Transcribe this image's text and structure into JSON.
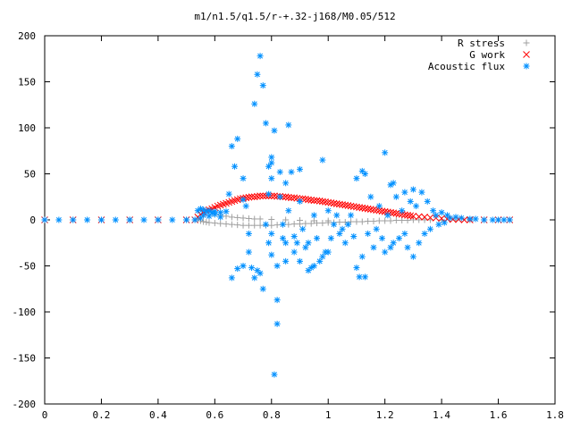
{
  "chart_data": {
    "type": "scatter",
    "title": "m1/n1.5/q1.5/r-+.32-j168/M0.05/512",
    "xlabel": "",
    "ylabel": "",
    "xlim": [
      0,
      1.8
    ],
    "ylim": [
      -200,
      200
    ],
    "x_ticks": [
      "0",
      "0.2",
      "0.4",
      "0.6",
      "0.8",
      "1",
      "1.2",
      "1.4",
      "1.6",
      "1.8"
    ],
    "y_ticks": [
      "200",
      "150",
      "100",
      "50",
      "0",
      "-50",
      "-100",
      "-150",
      "-200"
    ],
    "grid": false,
    "legend_position": "top-right",
    "series": [
      {
        "name": "R stress",
        "marker": "plus",
        "color": "#a0a0a0",
        "points": [
          [
            0.0,
            0
          ],
          [
            0.1,
            0
          ],
          [
            0.2,
            0
          ],
          [
            0.3,
            0
          ],
          [
            0.4,
            0
          ],
          [
            0.5,
            0
          ],
          [
            0.53,
            0
          ],
          [
            0.54,
            1
          ],
          [
            0.55,
            -1
          ],
          [
            0.56,
            -2
          ],
          [
            0.57,
            -2.5
          ],
          [
            0.58,
            -3
          ],
          [
            0.6,
            -3.5
          ],
          [
            0.62,
            -4
          ],
          [
            0.64,
            -4.5
          ],
          [
            0.66,
            -5
          ],
          [
            0.68,
            -5.5
          ],
          [
            0.7,
            -6
          ],
          [
            0.72,
            -6
          ],
          [
            0.74,
            -6
          ],
          [
            0.76,
            -6
          ],
          [
            0.78,
            -6
          ],
          [
            0.8,
            -6
          ],
          [
            0.82,
            -5.5
          ],
          [
            0.84,
            -5
          ],
          [
            0.86,
            -5
          ],
          [
            0.88,
            -4.5
          ],
          [
            0.9,
            -4.5
          ],
          [
            0.92,
            -4
          ],
          [
            0.94,
            -4
          ],
          [
            0.96,
            -3.5
          ],
          [
            0.98,
            -3.5
          ],
          [
            1.0,
            -3
          ],
          [
            1.02,
            -3
          ],
          [
            1.04,
            -2.5
          ],
          [
            1.06,
            -2.5
          ],
          [
            1.08,
            -2
          ],
          [
            1.1,
            -2
          ],
          [
            1.12,
            -2
          ],
          [
            1.14,
            -1.5
          ],
          [
            1.16,
            -1.5
          ],
          [
            1.18,
            -1
          ],
          [
            1.2,
            -1
          ],
          [
            1.22,
            -1
          ],
          [
            1.24,
            -0.5
          ],
          [
            1.26,
            -0.5
          ],
          [
            1.28,
            -0.5
          ],
          [
            1.3,
            0
          ],
          [
            1.32,
            0
          ],
          [
            1.34,
            0
          ],
          [
            1.36,
            0
          ],
          [
            1.4,
            0
          ],
          [
            1.45,
            0
          ],
          [
            1.5,
            0
          ],
          [
            1.55,
            0
          ],
          [
            1.6,
            0
          ],
          [
            1.64,
            0
          ],
          [
            0.6,
            6
          ],
          [
            0.62,
            5
          ],
          [
            0.64,
            4
          ],
          [
            0.66,
            3
          ],
          [
            0.68,
            2.5
          ],
          [
            0.7,
            2
          ],
          [
            0.72,
            1.5
          ],
          [
            0.74,
            1
          ],
          [
            0.76,
            1
          ],
          [
            0.8,
            0.5
          ],
          [
            0.85,
            0
          ],
          [
            0.9,
            -0.5
          ],
          [
            0.95,
            -1
          ],
          [
            1.0,
            -1
          ]
        ]
      },
      {
        "name": "G work",
        "marker": "cross",
        "color": "#ff0000",
        "points": [
          [
            0.0,
            0
          ],
          [
            0.1,
            0
          ],
          [
            0.2,
            0
          ],
          [
            0.3,
            0
          ],
          [
            0.4,
            0
          ],
          [
            0.5,
            0
          ],
          [
            0.53,
            0
          ],
          [
            0.54,
            3
          ],
          [
            0.55,
            6
          ],
          [
            0.56,
            8
          ],
          [
            0.57,
            10
          ],
          [
            0.58,
            11
          ],
          [
            0.59,
            12
          ],
          [
            0.6,
            13.5
          ],
          [
            0.61,
            15
          ],
          [
            0.62,
            16
          ],
          [
            0.63,
            17
          ],
          [
            0.64,
            18
          ],
          [
            0.65,
            19
          ],
          [
            0.66,
            20
          ],
          [
            0.67,
            21
          ],
          [
            0.68,
            22
          ],
          [
            0.69,
            23
          ],
          [
            0.7,
            23.5
          ],
          [
            0.71,
            24
          ],
          [
            0.72,
            24.5
          ],
          [
            0.73,
            25
          ],
          [
            0.74,
            25
          ],
          [
            0.75,
            25.5
          ],
          [
            0.76,
            26
          ],
          [
            0.77,
            26
          ],
          [
            0.78,
            26
          ],
          [
            0.79,
            26
          ],
          [
            0.8,
            26
          ],
          [
            0.81,
            26
          ],
          [
            0.82,
            25.5
          ],
          [
            0.83,
            25.5
          ],
          [
            0.84,
            25
          ],
          [
            0.85,
            25
          ],
          [
            0.86,
            24.5
          ],
          [
            0.87,
            24
          ],
          [
            0.88,
            24
          ],
          [
            0.89,
            23.5
          ],
          [
            0.9,
            23
          ],
          [
            0.91,
            23
          ],
          [
            0.92,
            22.5
          ],
          [
            0.93,
            22
          ],
          [
            0.94,
            21.5
          ],
          [
            0.95,
            21
          ],
          [
            0.96,
            21
          ],
          [
            0.97,
            20.5
          ],
          [
            0.98,
            20
          ],
          [
            0.99,
            19.5
          ],
          [
            1.0,
            19
          ],
          [
            1.01,
            18.5
          ],
          [
            1.02,
            18
          ],
          [
            1.03,
            17.5
          ],
          [
            1.04,
            17
          ],
          [
            1.05,
            16.5
          ],
          [
            1.06,
            16
          ],
          [
            1.07,
            15.5
          ],
          [
            1.08,
            15
          ],
          [
            1.09,
            14.5
          ],
          [
            1.1,
            14
          ],
          [
            1.11,
            13.5
          ],
          [
            1.12,
            13
          ],
          [
            1.13,
            12.5
          ],
          [
            1.14,
            12
          ],
          [
            1.15,
            11.5
          ],
          [
            1.16,
            11
          ],
          [
            1.17,
            10.5
          ],
          [
            1.18,
            10
          ],
          [
            1.19,
            9.5
          ],
          [
            1.2,
            9
          ],
          [
            1.21,
            8.5
          ],
          [
            1.22,
            8
          ],
          [
            1.23,
            7.5
          ],
          [
            1.24,
            7
          ],
          [
            1.25,
            6.5
          ],
          [
            1.26,
            6
          ],
          [
            1.27,
            5.5
          ],
          [
            1.28,
            5
          ],
          [
            1.29,
            4.5
          ],
          [
            1.3,
            4
          ],
          [
            1.32,
            3.5
          ],
          [
            1.34,
            3
          ],
          [
            1.36,
            2.5
          ],
          [
            1.38,
            2
          ],
          [
            1.4,
            1.5
          ],
          [
            1.42,
            1
          ],
          [
            1.44,
            0.5
          ],
          [
            1.46,
            0.5
          ],
          [
            1.48,
            0
          ],
          [
            1.5,
            0
          ],
          [
            1.55,
            0
          ],
          [
            1.6,
            0
          ],
          [
            1.64,
            0
          ]
        ]
      },
      {
        "name": "Acoustic flux",
        "marker": "star",
        "color": "#0090ff",
        "points": [
          [
            0.0,
            0
          ],
          [
            0.05,
            0
          ],
          [
            0.1,
            0
          ],
          [
            0.15,
            0
          ],
          [
            0.2,
            0
          ],
          [
            0.25,
            0
          ],
          [
            0.3,
            0
          ],
          [
            0.35,
            0
          ],
          [
            0.4,
            0
          ],
          [
            0.45,
            0
          ],
          [
            0.5,
            0
          ],
          [
            0.53,
            0
          ],
          [
            0.54,
            10
          ],
          [
            0.55,
            12
          ],
          [
            0.56,
            11
          ],
          [
            0.57,
            9
          ],
          [
            0.58,
            10
          ],
          [
            0.59,
            8
          ],
          [
            0.6,
            9
          ],
          [
            0.62,
            8
          ],
          [
            0.64,
            9
          ],
          [
            0.55,
            2
          ],
          [
            0.56,
            5
          ],
          [
            0.58,
            4
          ],
          [
            0.6,
            6
          ],
          [
            0.62,
            3
          ],
          [
            0.66,
            80
          ],
          [
            0.67,
            58
          ],
          [
            0.68,
            88
          ],
          [
            0.65,
            28
          ],
          [
            0.66,
            -63
          ],
          [
            0.68,
            -53
          ],
          [
            0.7,
            -50
          ],
          [
            0.7,
            45
          ],
          [
            0.7,
            22
          ],
          [
            0.71,
            15
          ],
          [
            0.72,
            -15
          ],
          [
            0.72,
            -35
          ],
          [
            0.73,
            -52
          ],
          [
            0.74,
            -63
          ],
          [
            0.74,
            126
          ],
          [
            0.75,
            158
          ],
          [
            0.75,
            -55
          ],
          [
            0.76,
            -58
          ],
          [
            0.77,
            -75
          ],
          [
            0.77,
            146
          ],
          [
            0.76,
            178
          ],
          [
            0.78,
            105
          ],
          [
            0.78,
            -5
          ],
          [
            0.79,
            28
          ],
          [
            0.79,
            58
          ],
          [
            0.79,
            -25
          ],
          [
            0.8,
            68
          ],
          [
            0.8,
            62
          ],
          [
            0.8,
            45
          ],
          [
            0.8,
            -15
          ],
          [
            0.8,
            -38
          ],
          [
            0.81,
            97
          ],
          [
            0.81,
            -168
          ],
          [
            0.82,
            -87
          ],
          [
            0.82,
            -113
          ],
          [
            0.82,
            -50
          ],
          [
            0.83,
            52
          ],
          [
            0.83,
            25
          ],
          [
            0.84,
            -5
          ],
          [
            0.84,
            -20
          ],
          [
            0.85,
            40
          ],
          [
            0.85,
            -25
          ],
          [
            0.85,
            -45
          ],
          [
            0.86,
            103
          ],
          [
            0.86,
            10
          ],
          [
            0.87,
            52
          ],
          [
            0.88,
            -18
          ],
          [
            0.88,
            -35
          ],
          [
            0.89,
            -25
          ],
          [
            0.9,
            55
          ],
          [
            0.9,
            20
          ],
          [
            0.9,
            -45
          ],
          [
            0.91,
            -10
          ],
          [
            0.92,
            -30
          ],
          [
            0.93,
            -25
          ],
          [
            0.93,
            -55
          ],
          [
            0.94,
            -52
          ],
          [
            0.95,
            -50
          ],
          [
            0.95,
            5
          ],
          [
            0.96,
            -20
          ],
          [
            0.97,
            -45
          ],
          [
            0.98,
            -40
          ],
          [
            0.98,
            65
          ],
          [
            0.99,
            -35
          ],
          [
            1.0,
            -35
          ],
          [
            1.0,
            10
          ],
          [
            1.01,
            -20
          ],
          [
            1.02,
            -5
          ],
          [
            1.03,
            5
          ],
          [
            1.04,
            -15
          ],
          [
            1.05,
            -10
          ],
          [
            1.06,
            -25
          ],
          [
            1.07,
            -5
          ],
          [
            1.08,
            5
          ],
          [
            1.09,
            -18
          ],
          [
            1.1,
            45
          ],
          [
            1.1,
            -52
          ],
          [
            1.11,
            -62
          ],
          [
            1.12,
            53
          ],
          [
            1.12,
            -40
          ],
          [
            1.13,
            50
          ],
          [
            1.13,
            -62
          ],
          [
            1.14,
            -15
          ],
          [
            1.15,
            25
          ],
          [
            1.16,
            -30
          ],
          [
            1.17,
            -10
          ],
          [
            1.18,
            15
          ],
          [
            1.19,
            -20
          ],
          [
            1.2,
            73
          ],
          [
            1.2,
            -35
          ],
          [
            1.21,
            5
          ],
          [
            1.22,
            38
          ],
          [
            1.22,
            -30
          ],
          [
            1.23,
            40
          ],
          [
            1.23,
            -25
          ],
          [
            1.24,
            25
          ],
          [
            1.25,
            -20
          ],
          [
            1.26,
            10
          ],
          [
            1.27,
            30
          ],
          [
            1.27,
            -15
          ],
          [
            1.28,
            -30
          ],
          [
            1.29,
            20
          ],
          [
            1.3,
            33
          ],
          [
            1.3,
            -40
          ],
          [
            1.31,
            15
          ],
          [
            1.32,
            -25
          ],
          [
            1.33,
            30
          ],
          [
            1.34,
            -15
          ],
          [
            1.35,
            20
          ],
          [
            1.36,
            -10
          ],
          [
            1.37,
            10
          ],
          [
            1.38,
            5
          ],
          [
            1.39,
            -5
          ],
          [
            1.4,
            8
          ],
          [
            1.41,
            -3
          ],
          [
            1.42,
            5
          ],
          [
            1.43,
            2
          ],
          [
            1.45,
            3
          ],
          [
            1.47,
            2
          ],
          [
            1.5,
            1
          ],
          [
            1.52,
            1
          ],
          [
            1.55,
            0
          ],
          [
            1.58,
            0
          ],
          [
            1.6,
            0
          ],
          [
            1.62,
            0
          ],
          [
            1.64,
            0
          ]
        ]
      }
    ]
  }
}
